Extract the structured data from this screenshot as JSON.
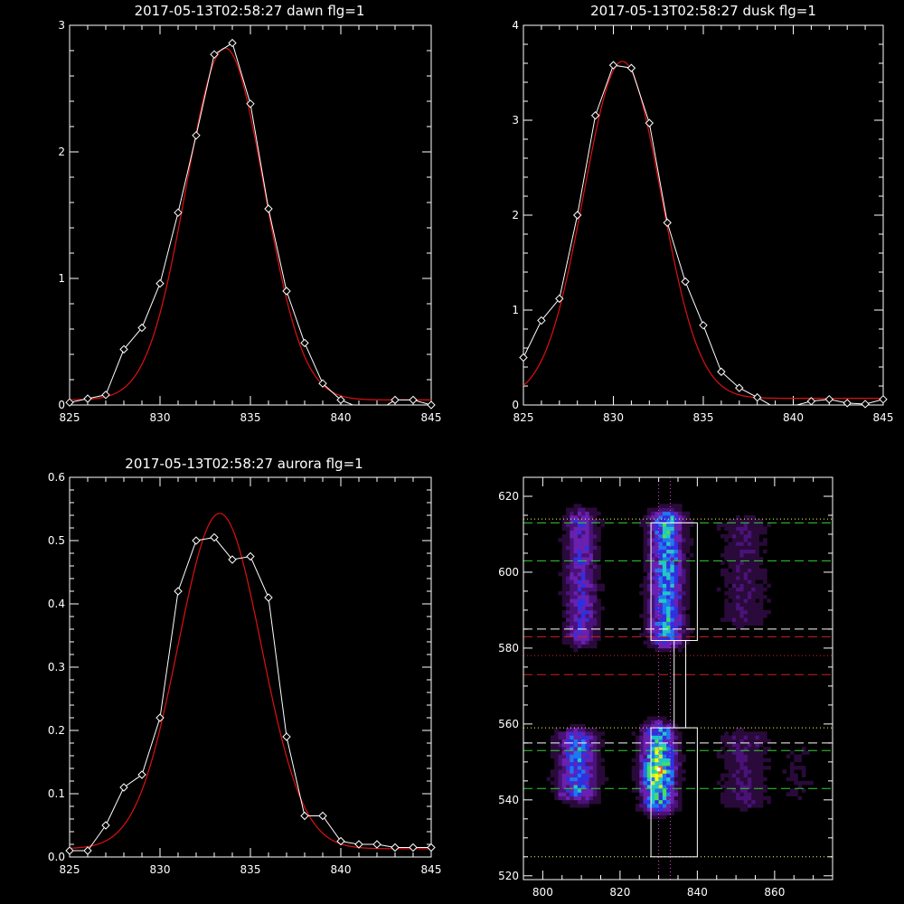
{
  "chart_data": [
    {
      "type": "line",
      "title": "2017-05-13T02:58:27 dawn flg=1",
      "xlim": [
        825,
        845
      ],
      "ylim": [
        0,
        3
      ],
      "xticks": [
        825,
        830,
        835,
        840,
        845
      ],
      "yticks": [
        0,
        1,
        2,
        3
      ],
      "x_minor_step": 1,
      "y_minor_step": 0.2,
      "xtick_labels": [
        "825",
        "830",
        "835",
        "840",
        "845"
      ],
      "ytick_labels": [
        "0",
        "1",
        "2",
        "3"
      ],
      "series": [
        {
          "kind": "data",
          "color": "#ffffff",
          "marker": "diamond",
          "x": [
            825,
            826,
            827,
            828,
            829,
            830,
            831,
            832,
            833,
            834,
            835,
            836,
            837,
            838,
            839,
            840,
            841,
            842,
            843,
            844,
            845
          ],
          "y": [
            0.02,
            0.05,
            0.08,
            0.44,
            0.61,
            0.96,
            1.52,
            2.13,
            2.77,
            2.86,
            2.38,
            1.55,
            0.9,
            0.49,
            0.17,
            0.04,
            -0.02,
            -0.05,
            0.04,
            0.04,
            0.0
          ]
        },
        {
          "kind": "fit",
          "color": "#e01010",
          "gaussian": {
            "amp": 2.78,
            "center": 833.6,
            "sigma": 2.15,
            "offset": 0.04
          }
        }
      ]
    },
    {
      "type": "line",
      "title": "2017-05-13T02:58:27 dusk flg=1",
      "xlim": [
        825,
        845
      ],
      "ylim": [
        0,
        4
      ],
      "xticks": [
        825,
        830,
        835,
        840,
        845
      ],
      "yticks": [
        0,
        1,
        2,
        3,
        4
      ],
      "x_minor_step": 1,
      "y_minor_step": 0.2,
      "xtick_labels": [
        "825",
        "830",
        "835",
        "840",
        "845"
      ],
      "ytick_labels": [
        "0",
        "1",
        "2",
        "3",
        "4"
      ],
      "series": [
        {
          "kind": "data",
          "color": "#ffffff",
          "marker": "diamond",
          "x": [
            825,
            826,
            827,
            828,
            829,
            830,
            831,
            832,
            833,
            834,
            835,
            836,
            837,
            838,
            839,
            840,
            841,
            842,
            843,
            844,
            845
          ],
          "y": [
            0.5,
            0.89,
            1.12,
            2.0,
            3.05,
            3.58,
            3.55,
            2.97,
            1.92,
            1.3,
            0.84,
            0.35,
            0.18,
            0.08,
            -0.03,
            -0.01,
            0.04,
            0.06,
            0.02,
            0.01,
            0.06
          ]
        },
        {
          "kind": "fit",
          "color": "#e01010",
          "gaussian": {
            "amp": 3.55,
            "center": 830.5,
            "sigma": 2.15,
            "offset": 0.07
          }
        }
      ]
    },
    {
      "type": "line",
      "title": "2017-05-13T02:58:27 aurora flg=1",
      "xlim": [
        825,
        845
      ],
      "ylim": [
        0,
        0.6
      ],
      "xticks": [
        825,
        830,
        835,
        840,
        845
      ],
      "yticks": [
        0,
        0.1,
        0.2,
        0.3,
        0.4,
        0.5,
        0.6
      ],
      "x_minor_step": 1,
      "y_minor_step": 0.02,
      "xtick_labels": [
        "825",
        "830",
        "835",
        "840",
        "845"
      ],
      "ytick_labels": [
        "0.0",
        "0.1",
        "0.2",
        "0.3",
        "0.4",
        "0.5",
        "0.6"
      ],
      "series": [
        {
          "kind": "data",
          "color": "#ffffff",
          "marker": "diamond",
          "x": [
            825,
            826,
            827,
            828,
            829,
            830,
            831,
            832,
            833,
            834,
            835,
            836,
            837,
            838,
            839,
            840,
            841,
            842,
            843,
            844,
            845
          ],
          "y": [
            0.01,
            0.01,
            0.05,
            0.11,
            0.13,
            0.22,
            0.42,
            0.5,
            0.505,
            0.47,
            0.475,
            0.41,
            0.19,
            0.065,
            0.065,
            0.025,
            0.02,
            0.02,
            0.015,
            0.015,
            0.015
          ]
        },
        {
          "kind": "fit",
          "color": "#e01010",
          "gaussian": {
            "amp": 0.53,
            "center": 833.3,
            "sigma": 2.3,
            "offset": 0.013
          }
        }
      ]
    },
    {
      "type": "heatmap",
      "xlim": [
        795,
        875
      ],
      "ylim": [
        519,
        625
      ],
      "xticks": [
        800,
        820,
        840,
        860
      ],
      "yticks": [
        520,
        540,
        560,
        580,
        600,
        620
      ],
      "x_minor_step": 5,
      "y_minor_step": 5,
      "xtick_labels": [
        "800",
        "820",
        "840",
        "860"
      ],
      "ytick_labels": [
        "520",
        "540",
        "560",
        "580",
        "600",
        "620"
      ],
      "colorscale": [
        "#000000",
        "#2a0a3a",
        "#4a1278",
        "#6a20b0",
        "#3030e0",
        "#1e78f0",
        "#20c8c8",
        "#40e060",
        "#c8f030",
        "#ffff00",
        "#ff6000",
        "#ff0000"
      ],
      "bands": [
        {
          "x": 809,
          "y0": 542,
          "y1": 556,
          "w": 3.5,
          "peak": 0.55
        },
        {
          "x": 810,
          "y0": 583,
          "y1": 614,
          "w": 2.8,
          "peak": 0.4
        },
        {
          "x": 830,
          "y0": 539,
          "y1": 558,
          "w": 3.0,
          "peak": 0.97
        },
        {
          "x": 832,
          "y0": 583,
          "y1": 614,
          "w": 3.0,
          "peak": 0.65
        },
        {
          "x": 852,
          "y0": 540,
          "y1": 556,
          "w": 4.0,
          "peak": 0.22
        },
        {
          "x": 852,
          "y0": 588,
          "y1": 612,
          "w": 4.0,
          "peak": 0.2
        },
        {
          "x": 866,
          "y0": 542,
          "y1": 552,
          "w": 3.0,
          "peak": 0.1
        }
      ],
      "boxes": [
        {
          "x0": 828,
          "x1": 840,
          "y0": 582,
          "y1": 613
        },
        {
          "x0": 828,
          "x1": 840,
          "y0": 525,
          "y1": 559
        }
      ],
      "connector": {
        "x0": 834,
        "x1": 837,
        "y0": 559,
        "y1": 582
      },
      "hlines": [
        {
          "y": 613,
          "color": "#30d030",
          "style": "dash"
        },
        {
          "y": 603,
          "color": "#30d030",
          "style": "dash"
        },
        {
          "y": 585,
          "color": "#ffffff",
          "style": "dash"
        },
        {
          "y": 583,
          "color": "#d02020",
          "style": "dash"
        },
        {
          "y": 573,
          "color": "#d02020",
          "style": "dash"
        },
        {
          "y": 555,
          "color": "#ffffff",
          "style": "dash"
        },
        {
          "y": 553,
          "color": "#30d030",
          "style": "dash"
        },
        {
          "y": 543,
          "color": "#30d030",
          "style": "dash"
        },
        {
          "y": 614,
          "color": "#ffff60",
          "style": "dot"
        },
        {
          "y": 578,
          "color": "#e02020",
          "style": "dot"
        },
        {
          "y": 559,
          "color": "#ffff60",
          "style": "dot"
        },
        {
          "y": 525,
          "color": "#ffff60",
          "style": "dot"
        }
      ],
      "vlines": [
        {
          "x": 830,
          "color": "#e040e0",
          "style": "dot"
        },
        {
          "x": 833,
          "color": "#e040e0",
          "style": "dot"
        }
      ],
      "markers": [
        {
          "x": 830,
          "y": 548,
          "color": "#ffffff"
        }
      ]
    }
  ]
}
